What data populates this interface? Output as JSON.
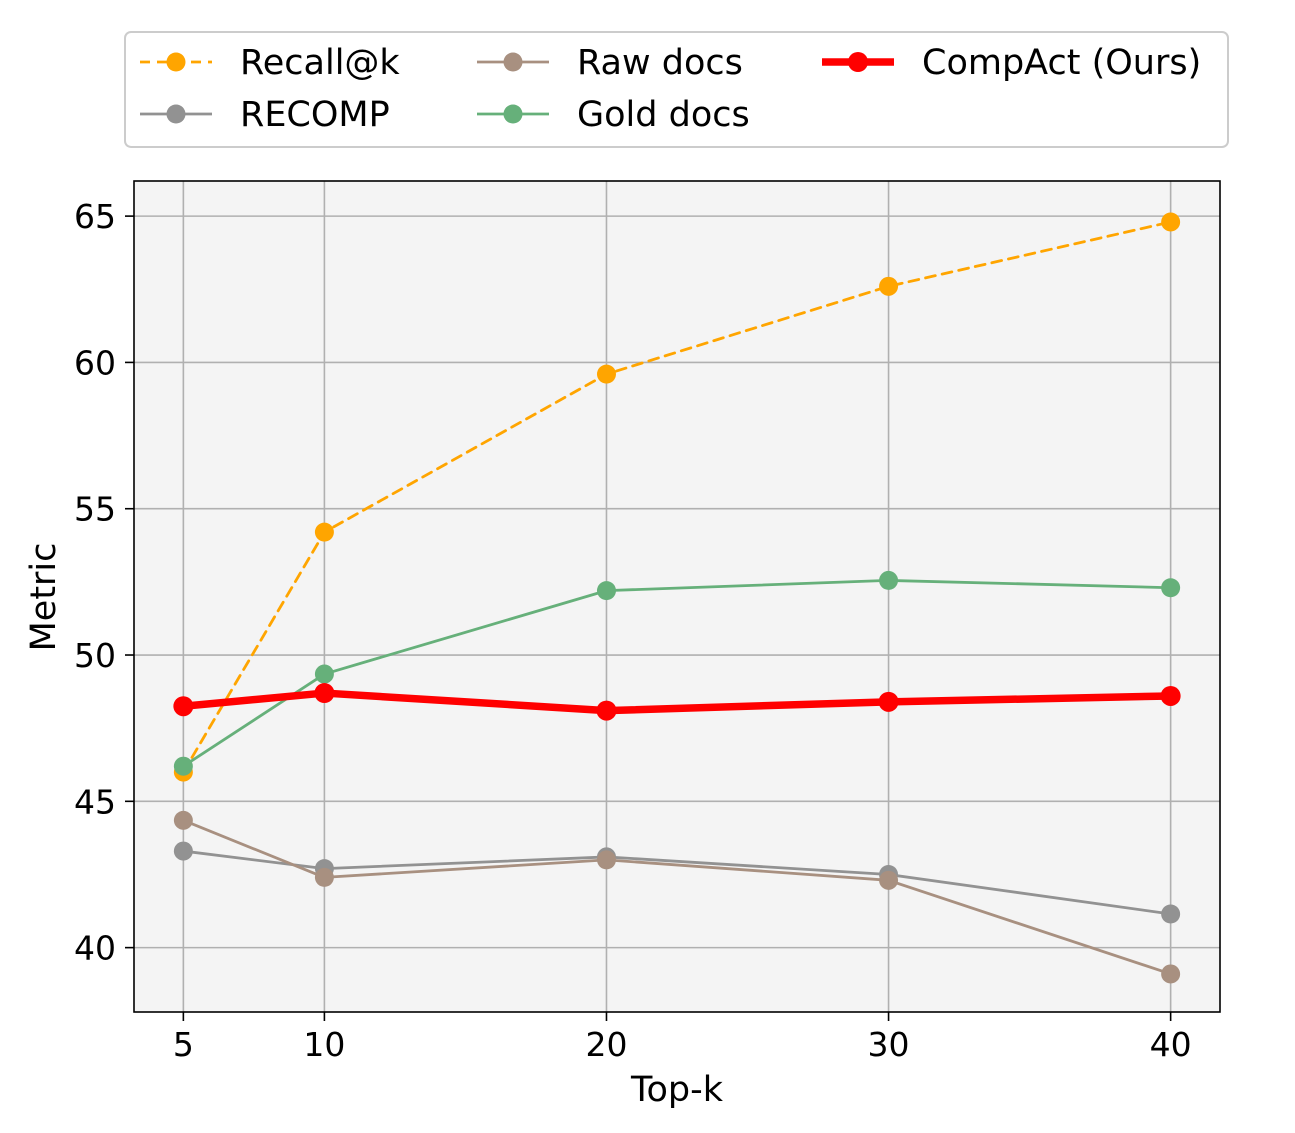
{
  "chart_data": {
    "type": "line",
    "title": "",
    "xlabel": "Top-k",
    "ylabel": "Metric",
    "x": [
      5,
      10,
      20,
      30,
      40
    ],
    "x_tick_labels": [
      "5",
      "10",
      "20",
      "30",
      "40"
    ],
    "y_ticks": [
      40,
      45,
      50,
      55,
      60,
      65
    ],
    "y_tick_labels": [
      "40",
      "45",
      "50",
      "55",
      "60",
      "65"
    ],
    "xlim": [
      3.25,
      41.75
    ],
    "ylim": [
      37.8,
      66.2
    ],
    "grid": true,
    "legend_position": "top, above plot",
    "series": [
      {
        "name": "Recall@k",
        "color": "#ffa500",
        "style": "dashed",
        "width": "thin",
        "values": [
          46.0,
          54.2,
          59.6,
          62.6,
          64.8
        ]
      },
      {
        "name": "RECOMP",
        "color": "#929292",
        "style": "solid",
        "width": "thin",
        "values": [
          43.3,
          42.7,
          43.1,
          42.5,
          41.15
        ]
      },
      {
        "name": "Raw docs",
        "color": "#a89080",
        "style": "solid",
        "width": "thin",
        "values": [
          44.35,
          42.4,
          43.0,
          42.3,
          39.1
        ]
      },
      {
        "name": "Gold docs",
        "color": "#66b07a",
        "style": "solid",
        "width": "thin",
        "values": [
          46.2,
          49.35,
          52.2,
          52.55,
          52.3
        ]
      },
      {
        "name": "CompAct (Ours)",
        "color": "#ff0000",
        "style": "solid",
        "width": "bold",
        "values": [
          48.25,
          48.7,
          48.1,
          48.4,
          48.6
        ]
      }
    ]
  }
}
